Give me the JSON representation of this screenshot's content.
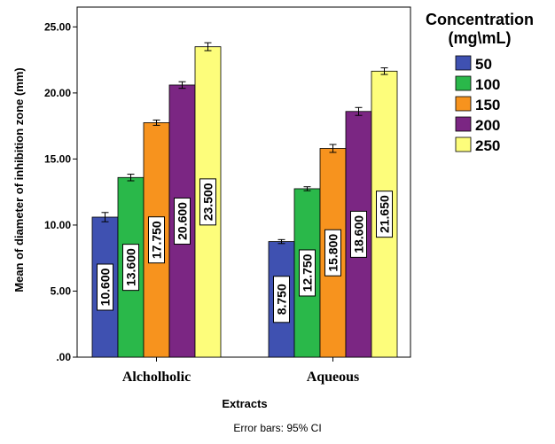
{
  "chart_data": {
    "type": "bar",
    "categories": [
      "Alcholholic",
      "Aqueous"
    ],
    "series": [
      {
        "name": "50",
        "color": "#3f51b1",
        "values": [
          10.6,
          8.75
        ],
        "ci": [
          [
            10.25,
            10.95
          ],
          [
            8.6,
            8.9
          ]
        ],
        "labels": [
          "10.600",
          "8.750"
        ]
      },
      {
        "name": "100",
        "color": "#2ab84a",
        "values": [
          13.6,
          12.75
        ],
        "ci": [
          [
            13.35,
            13.85
          ],
          [
            12.6,
            12.9
          ]
        ],
        "labels": [
          "13.600",
          "12.750"
        ]
      },
      {
        "name": "150",
        "color": "#f7931e",
        "values": [
          17.75,
          15.8
        ],
        "ci": [
          [
            17.55,
            17.95
          ],
          [
            15.5,
            16.1
          ]
        ],
        "labels": [
          "17.750",
          "15.800"
        ]
      },
      {
        "name": "200",
        "color": "#7b2683",
        "values": [
          20.6,
          18.6
        ],
        "ci": [
          [
            20.35,
            20.85
          ],
          [
            18.3,
            18.9
          ]
        ],
        "labels": [
          "20.600",
          "18.600"
        ]
      },
      {
        "name": "250",
        "color": "#fdfd7b",
        "values": [
          23.5,
          21.65
        ],
        "ci": [
          [
            23.2,
            23.8
          ],
          [
            21.4,
            21.9
          ]
        ],
        "labels": [
          "23.500",
          "21.650"
        ]
      }
    ],
    "yticks": [
      ".00",
      "5.00",
      "10.00",
      "15.00",
      "20.00",
      "25.00"
    ],
    "ylim": [
      0,
      26.5
    ],
    "xlabel": "Extracts",
    "ylabel": "Mean of diameter of inhibition zone (mm)",
    "legend_title_line1": "Concentration",
    "legend_title_line2": "(mg\\mL)",
    "legend_position": "right",
    "footnote": "Error bars: 95% CI",
    "grid": false
  }
}
